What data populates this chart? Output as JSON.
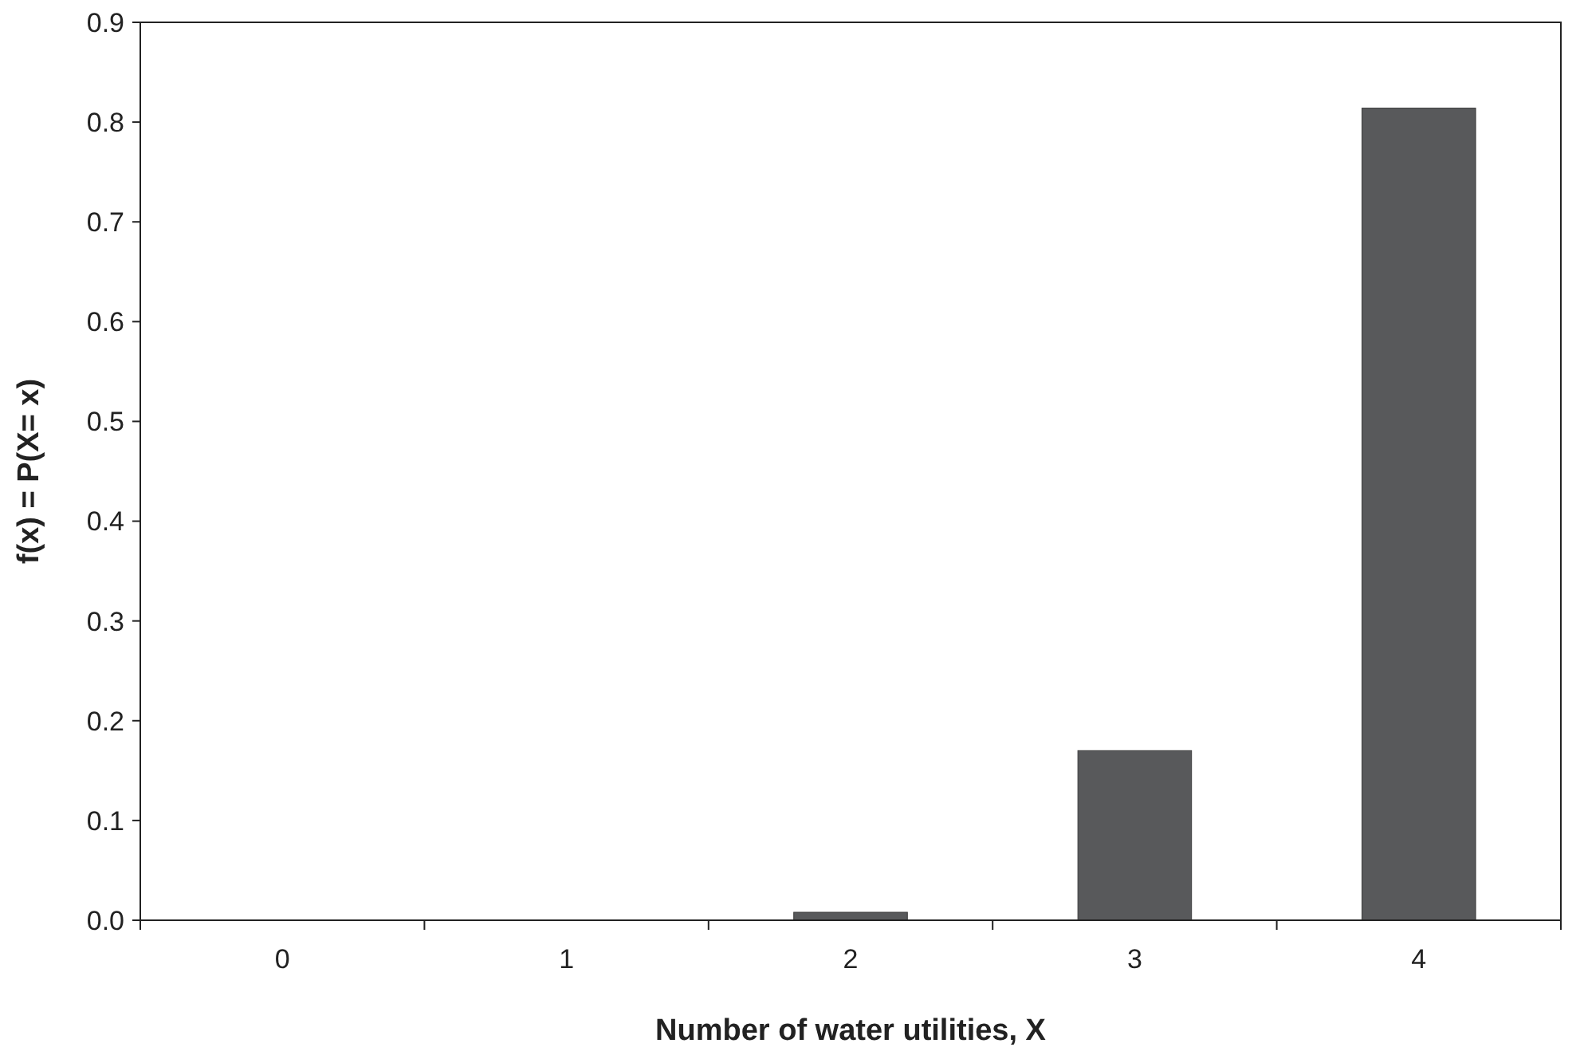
{
  "chart_data": {
    "type": "bar",
    "xlabel": "Number of water utilities, X",
    "ylabel": "f(x) = P(X= x)",
    "categories": [
      "0",
      "1",
      "2",
      "3",
      "4"
    ],
    "values": [
      0,
      0,
      0.008,
      0.17,
      0.814
    ],
    "color": "#58595b",
    "ylim": [
      0,
      0.9
    ],
    "yticks": [
      {
        "value": 0,
        "label": "0.0"
      },
      {
        "value": 0.1,
        "label": "0.1"
      },
      {
        "value": 0.2,
        "label": "0.2"
      },
      {
        "value": 0.3,
        "label": "0.3"
      },
      {
        "value": 0.4,
        "label": "0.4"
      },
      {
        "value": 0.5,
        "label": "0.5"
      },
      {
        "value": 0.6,
        "label": "0.6"
      },
      {
        "value": 0.7,
        "label": "0.7"
      },
      {
        "value": 0.8,
        "label": "0.8"
      },
      {
        "value": 0.9,
        "label": "0.9"
      }
    ],
    "grid": false
  }
}
